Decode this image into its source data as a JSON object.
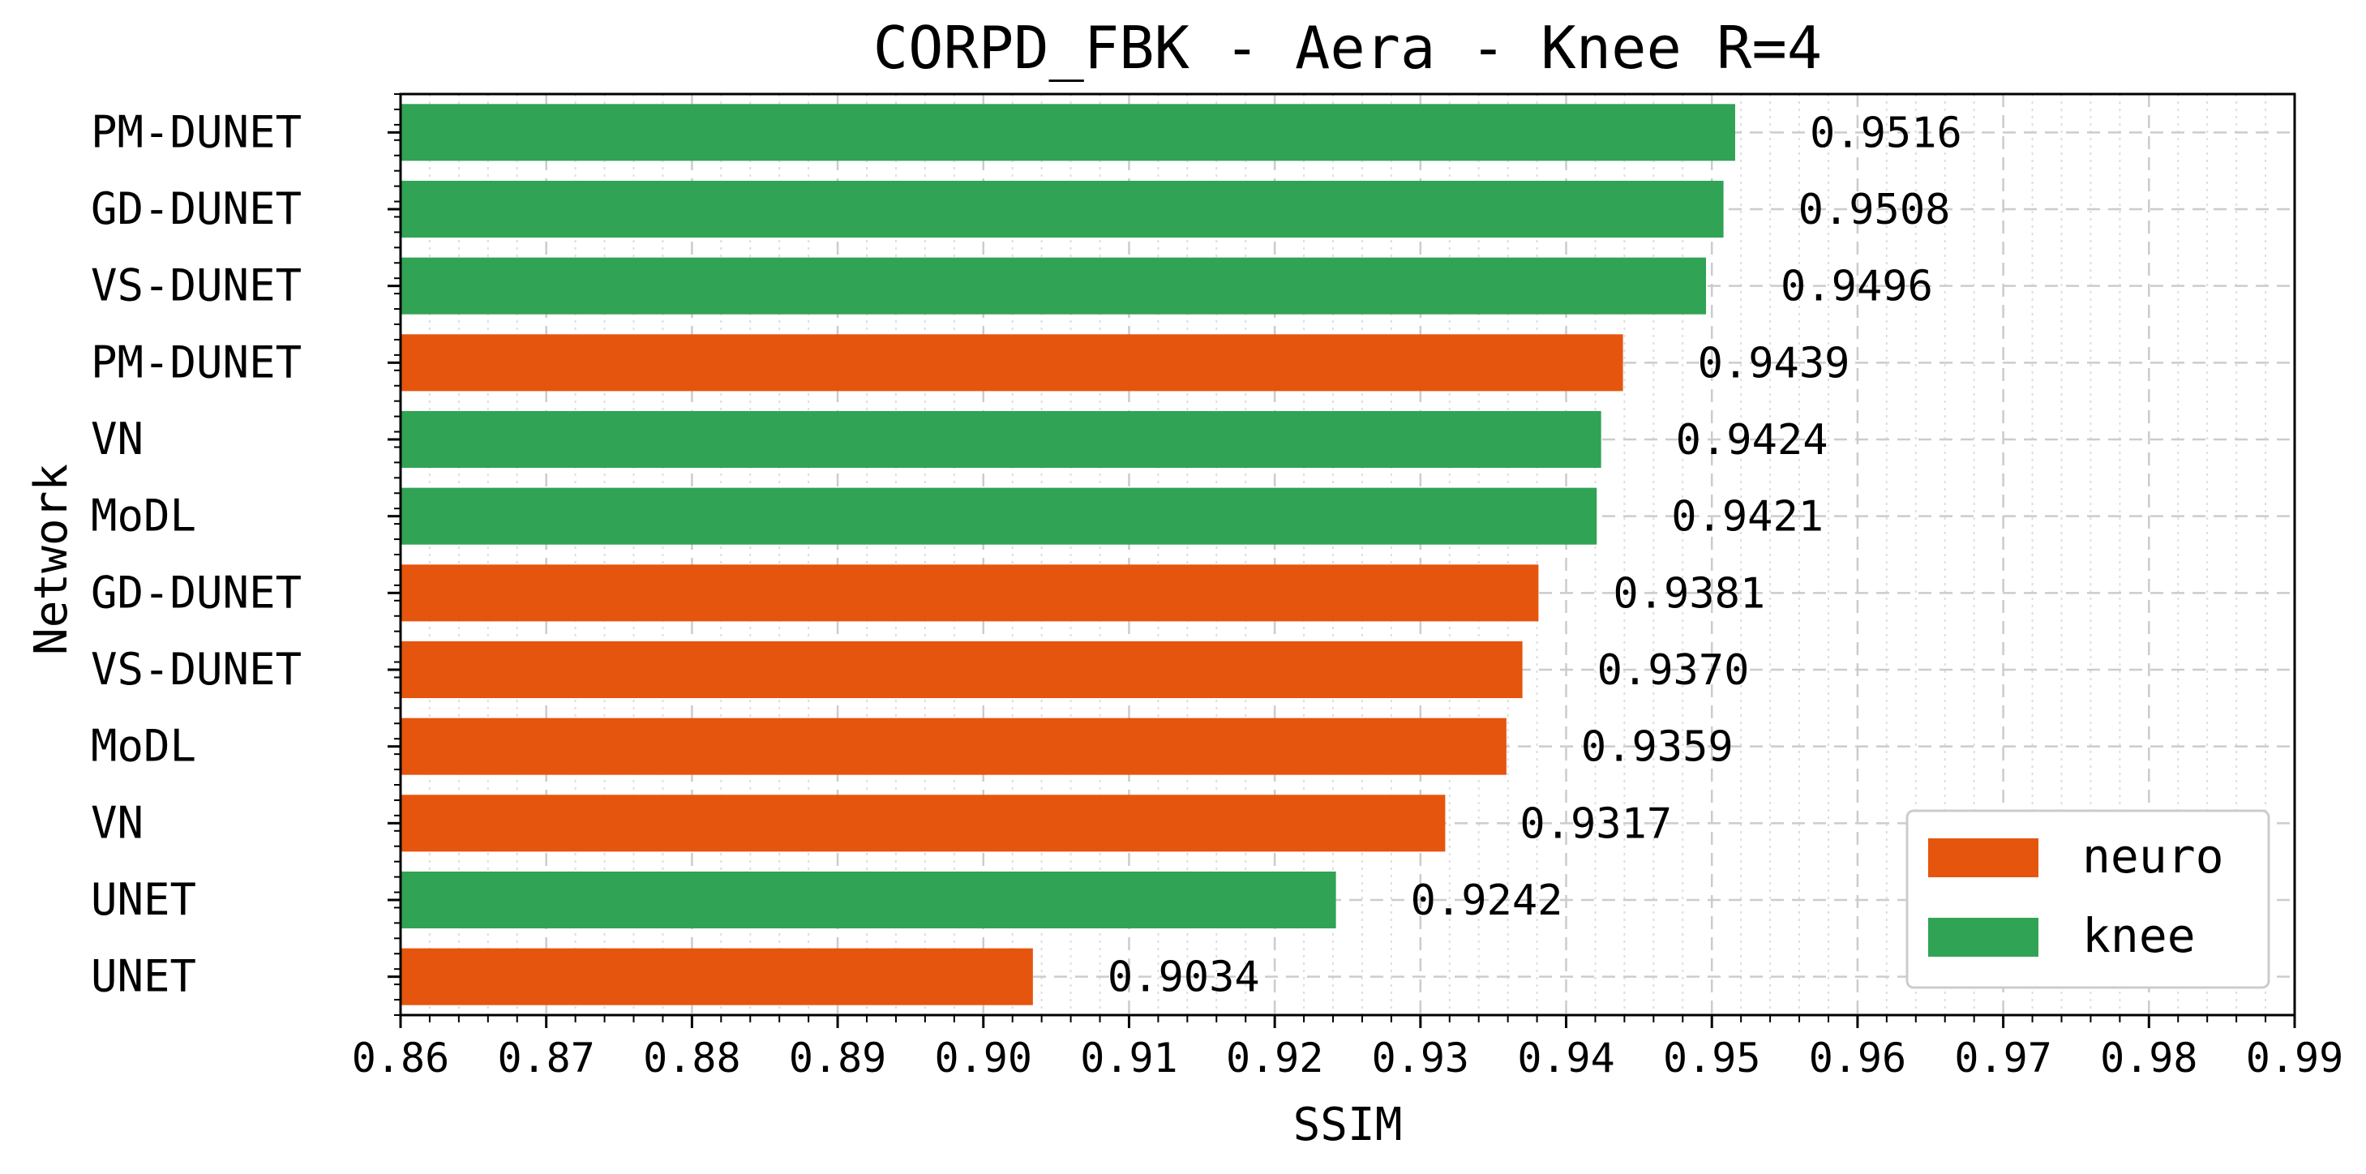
{
  "chart_data": {
    "type": "bar",
    "orientation": "horizontal",
    "title": "CORPD_FBK - Aera - Knee R=4",
    "xlabel": "SSIM",
    "ylabel": "Network",
    "xlim": [
      0.86,
      0.99
    ],
    "x_ticks": [
      "0.86",
      "0.87",
      "0.88",
      "0.89",
      "0.90",
      "0.91",
      "0.92",
      "0.93",
      "0.94",
      "0.95",
      "0.96",
      "0.97",
      "0.98",
      "0.99"
    ],
    "grid": true,
    "legend_position": "lower-right",
    "legend": [
      {
        "name": "neuro",
        "color": "#e6550d"
      },
      {
        "name": "knee",
        "color": "#31a354"
      }
    ],
    "bars": [
      {
        "category": "PM-DUNET",
        "group": "knee",
        "value": 0.9516,
        "label": "0.9516"
      },
      {
        "category": "GD-DUNET",
        "group": "knee",
        "value": 0.9508,
        "label": "0.9508"
      },
      {
        "category": "VS-DUNET",
        "group": "knee",
        "value": 0.9496,
        "label": "0.9496"
      },
      {
        "category": "PM-DUNET",
        "group": "neuro",
        "value": 0.9439,
        "label": "0.9439"
      },
      {
        "category": "VN",
        "group": "knee",
        "value": 0.9424,
        "label": "0.9424"
      },
      {
        "category": "MoDL",
        "group": "knee",
        "value": 0.9421,
        "label": "0.9421"
      },
      {
        "category": "GD-DUNET",
        "group": "neuro",
        "value": 0.9381,
        "label": "0.9381"
      },
      {
        "category": "VS-DUNET",
        "group": "neuro",
        "value": 0.937,
        "label": "0.9370"
      },
      {
        "category": "MoDL",
        "group": "neuro",
        "value": 0.9359,
        "label": "0.9359"
      },
      {
        "category": "VN",
        "group": "neuro",
        "value": 0.9317,
        "label": "0.9317"
      },
      {
        "category": "UNET",
        "group": "knee",
        "value": 0.9242,
        "label": "0.9242"
      },
      {
        "category": "UNET",
        "group": "neuro",
        "value": 0.9034,
        "label": "0.9034"
      }
    ]
  }
}
